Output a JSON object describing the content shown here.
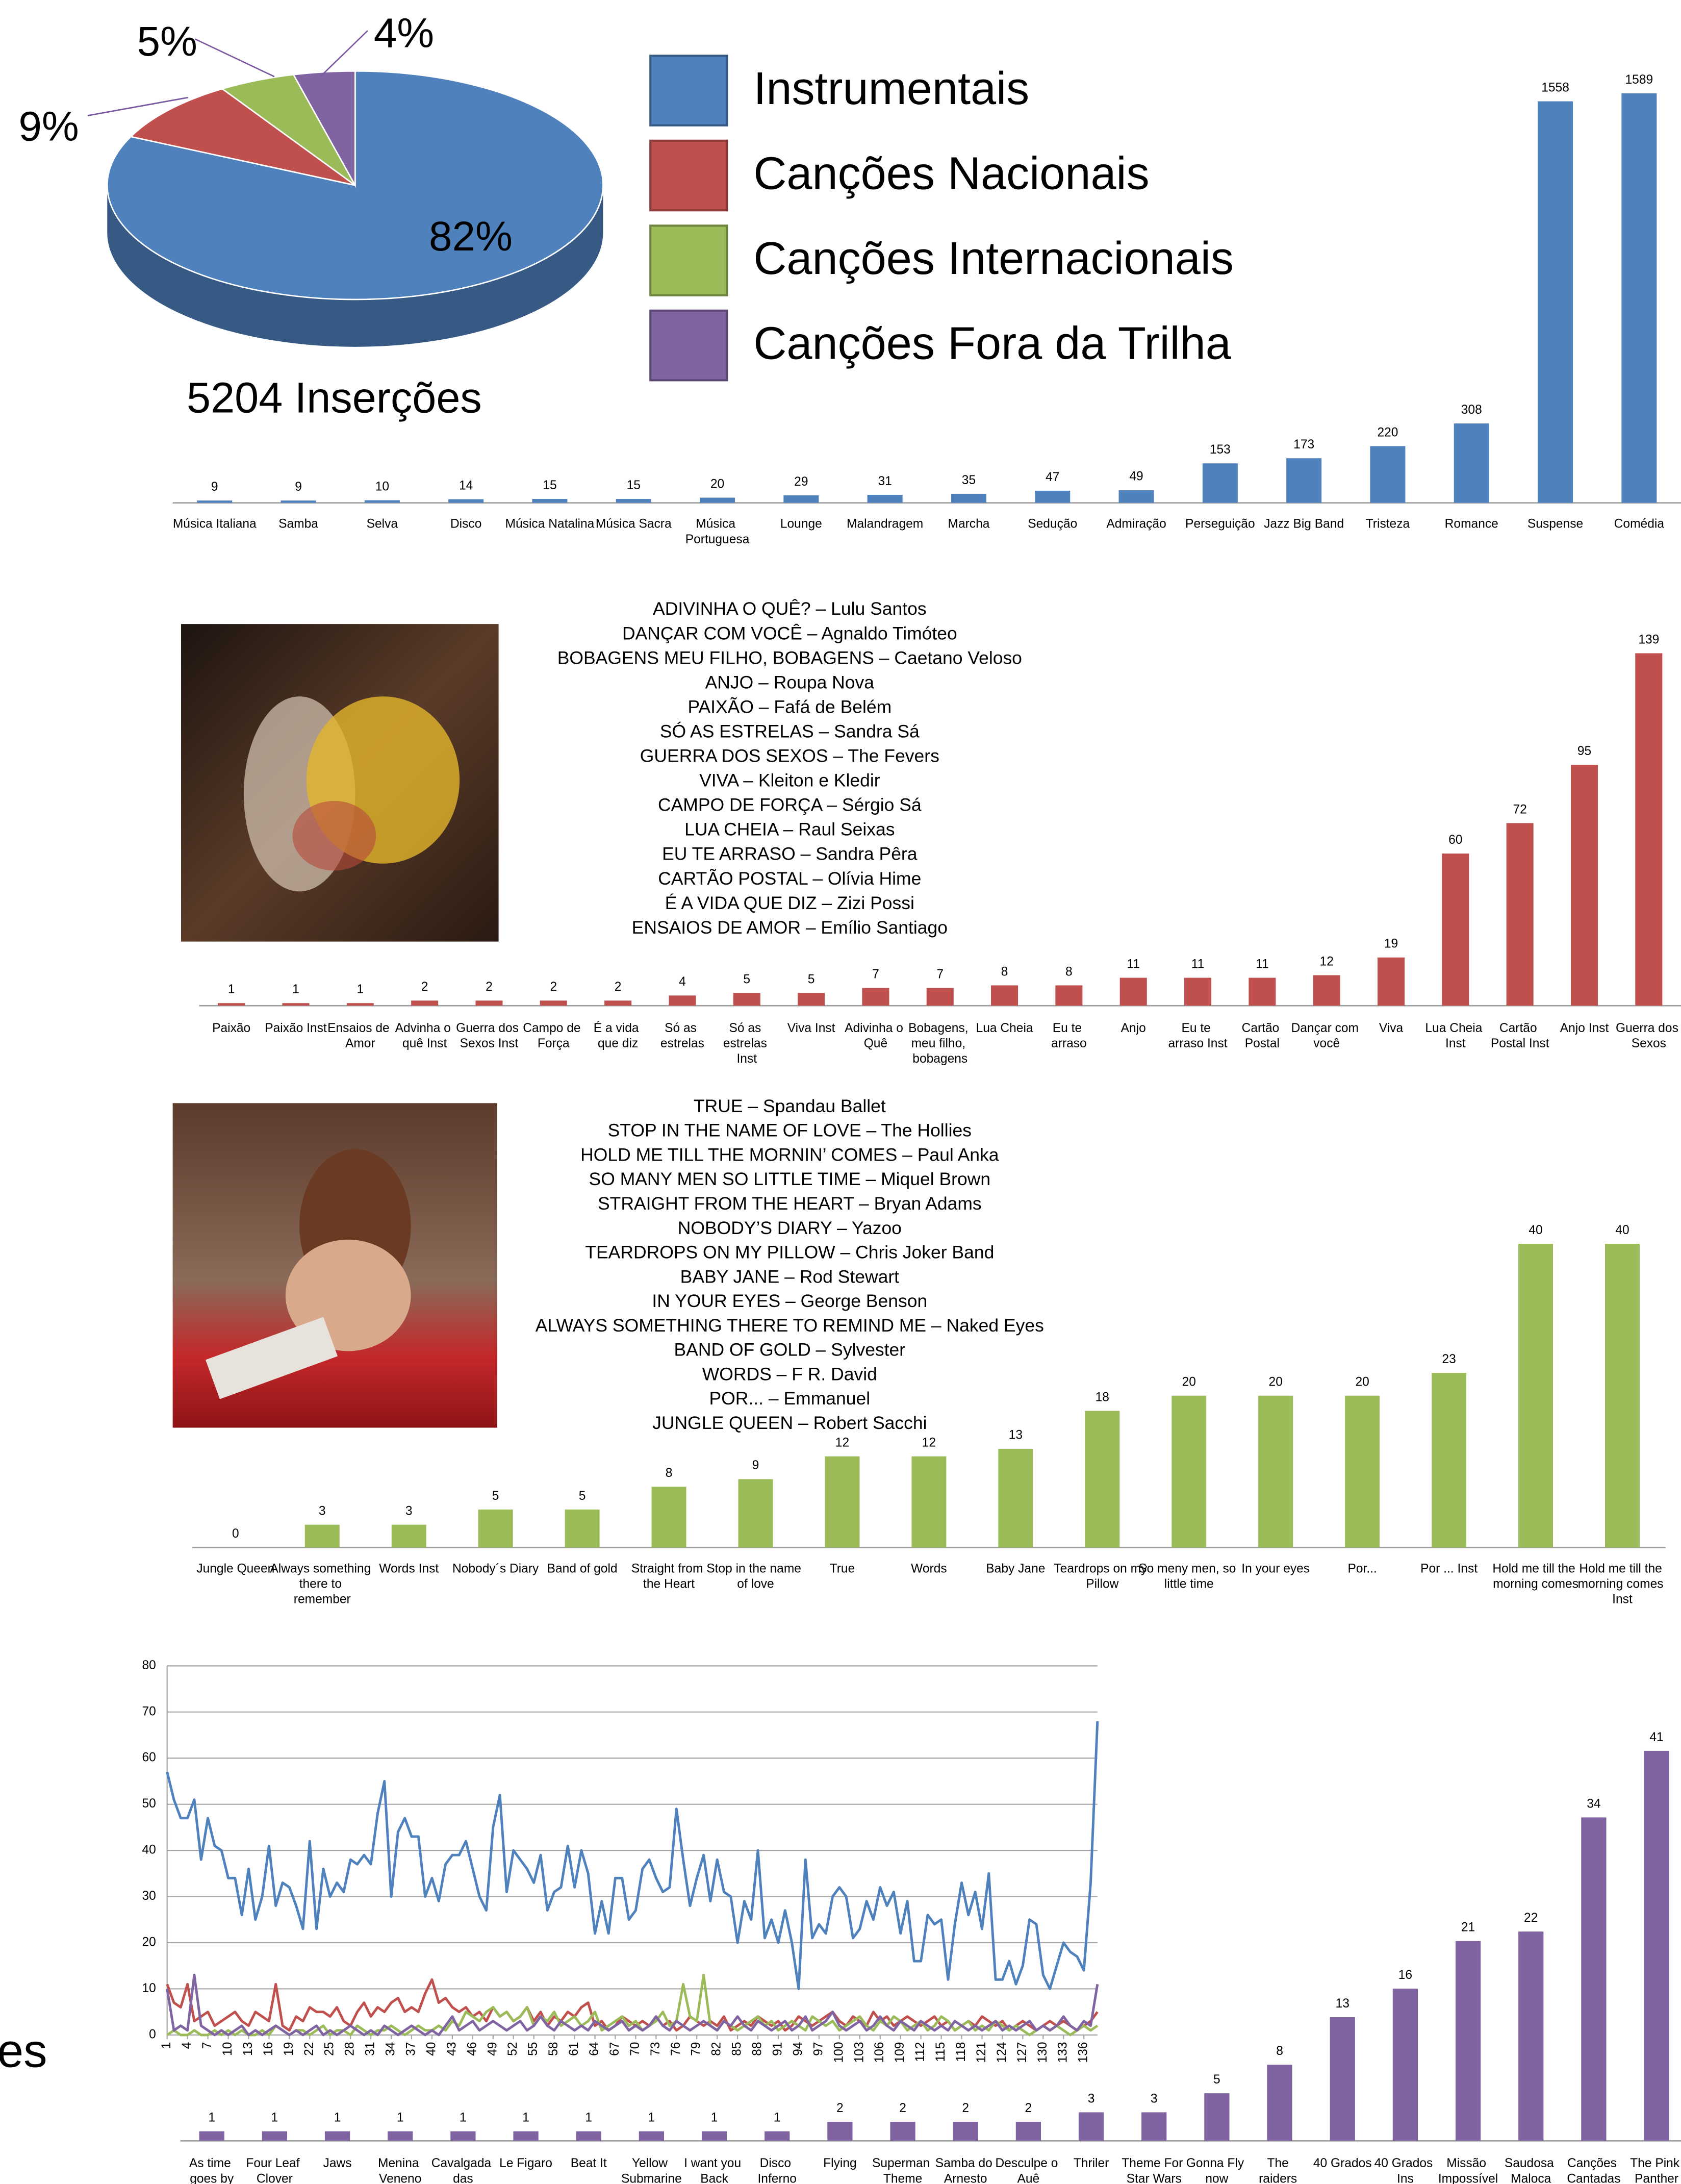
{
  "fragment": "es",
  "chart_data": [
    {
      "type": "pie",
      "categories": [
        "Instrumentais",
        "Canções Nacionais",
        "Canções Internacionais",
        "Canções Fora da Trilha"
      ],
      "values": [
        82,
        9,
        5,
        4
      ],
      "value_labels": [
        "82%",
        "9%",
        "5%",
        "4%"
      ],
      "colors": [
        "#4f81bd",
        "#c0504d",
        "#9bbb59",
        "#8064a2"
      ],
      "annotation": "5204 Inserções",
      "legend": "right"
    },
    {
      "type": "bar",
      "color": "#4f81bd",
      "categories": [
        "Música Italiana",
        "Samba",
        "Selva",
        "Disco",
        "Música Natalina",
        "Música Sacra",
        "Música Portuguesa",
        "Lounge",
        "Malandragem",
        "Marcha",
        "Sedução",
        "Admiração",
        "Perseguição",
        "Jazz Big Band",
        "Tristeza",
        "Romance",
        "Suspense",
        "Comédia"
      ],
      "values": [
        9,
        9,
        10,
        14,
        15,
        15,
        20,
        29,
        31,
        35,
        47,
        49,
        153,
        173,
        220,
        308,
        1558,
        1589
      ]
    },
    {
      "type": "bar",
      "color": "#c0504d",
      "categories": [
        "Paixão",
        "Paixão Inst",
        "Ensaios de Amor",
        "Advinha o quê Inst",
        "Guerra dos Sexos Inst",
        "Campo de Força",
        "É a vida que diz",
        "Só as estrelas",
        "Só as estrelas Inst",
        "Viva Inst",
        "Adivinha o Quê",
        "Bobagens, meu filho, bobagens",
        "Lua Cheia",
        "Eu te arraso",
        "Anjo",
        "Eu te arraso Inst",
        "Cartão Postal",
        "Dançar com você",
        "Viva",
        "Lua Cheia Inst",
        "Cartão Postal Inst",
        "Anjo Inst",
        "Guerra dos Sexos"
      ],
      "values": [
        1,
        1,
        1,
        2,
        2,
        2,
        2,
        4,
        5,
        5,
        7,
        7,
        8,
        8,
        11,
        11,
        11,
        12,
        19,
        60,
        72,
        95,
        139
      ],
      "songs": [
        "ADIVINHA O QUÊ? – Lulu Santos",
        "DANÇAR COM VOCÊ – Agnaldo Timóteo",
        "BOBAGENS MEU FILHO, BOBAGENS – Caetano Veloso",
        "ANJO – Roupa Nova",
        "PAIXÃO – Fafá de Belém",
        "SÓ AS ESTRELAS – Sandra Sá",
        "GUERRA DOS SEXOS – The Fevers",
        "VIVA – Kleiton e Kledir",
        "CAMPO DE FORÇA – Sérgio Sá",
        "LUA CHEIA – Raul Seixas",
        "EU TE ARRASO – Sandra Pêra",
        "CARTÃO POSTAL – Olívia Hime",
        "É A VIDA QUE DIZ – Zizi Possi",
        "ENSAIOS DE AMOR – Emílio Santiago"
      ]
    },
    {
      "type": "bar",
      "color": "#9bbb59",
      "categories": [
        "Jungle Queen",
        "Always something there to remember",
        "Words Inst",
        "Nobody´s Diary",
        "Band of gold",
        "Straight from the Heart",
        "Stop in the name of love",
        "True",
        "Words",
        "Baby Jane",
        "Teardrops on my Pillow",
        "So meny men, so little time",
        "In your eyes",
        "Por...",
        "Por ... Inst",
        "Hold me till the morning comes",
        "Hold me till the morning comes Inst"
      ],
      "values": [
        0,
        3,
        3,
        5,
        5,
        8,
        9,
        12,
        12,
        13,
        18,
        20,
        20,
        20,
        23,
        40,
        40
      ],
      "songs": [
        "TRUE – Spandau Ballet",
        "STOP IN THE NAME OF LOVE – The  Hollies",
        "HOLD ME TILL THE MORNIN’ COMES – Paul Anka",
        "SO MANY MEN SO LITTLE TIME – Miquel Brown",
        "STRAIGHT FROM THE HEART – Bryan Adams",
        "NOBODY’S DIARY – Yazoo",
        "TEARDROPS ON MY PILLOW – Chris Joker Band",
        "BABY JANE – Rod Stewart",
        "IN YOUR EYES – George Benson",
        "ALWAYS SOMETHING THERE TO REMIND ME – Naked Eyes",
        "BAND OF GOLD – Sylvester",
        "WORDS – F R. David",
        "POR... – Emmanuel",
        "JUNGLE QUEEN – Robert Sacchi"
      ]
    },
    {
      "type": "line",
      "grid": true,
      "ylim": [
        0,
        80
      ],
      "yticks": [
        0,
        10,
        20,
        30,
        40,
        50,
        60,
        70,
        80
      ],
      "xlim": [
        1,
        138
      ],
      "xticks": [
        1,
        4,
        7,
        10,
        13,
        16,
        19,
        22,
        25,
        28,
        31,
        34,
        37,
        40,
        43,
        46,
        49,
        52,
        55,
        58,
        61,
        64,
        67,
        70,
        73,
        76,
        79,
        82,
        85,
        88,
        91,
        94,
        97,
        100,
        103,
        106,
        109,
        112,
        115,
        118,
        121,
        124,
        127,
        130,
        133,
        136
      ],
      "x": [
        1,
        2,
        3,
        4,
        5,
        6,
        7,
        8,
        9,
        10,
        11,
        12,
        13,
        14,
        15,
        16,
        17,
        18,
        19,
        20,
        21,
        22,
        23,
        24,
        25,
        26,
        27,
        28,
        29,
        30,
        31,
        32,
        33,
        34,
        35,
        36,
        37,
        38,
        39,
        40,
        41,
        42,
        43,
        44,
        45,
        46,
        47,
        48,
        49,
        50,
        51,
        52,
        53,
        54,
        55,
        56,
        57,
        58,
        59,
        60,
        61,
        62,
        63,
        64,
        65,
        66,
        67,
        68,
        69,
        70,
        71,
        72,
        73,
        74,
        75,
        76,
        77,
        78,
        79,
        80,
        81,
        82,
        83,
        84,
        85,
        86,
        87,
        88,
        89,
        90,
        91,
        92,
        93,
        94,
        95,
        96,
        97,
        98,
        99,
        100,
        101,
        102,
        103,
        104,
        105,
        106,
        107,
        108,
        109,
        110,
        111,
        112,
        113,
        114,
        115,
        116,
        117,
        118,
        119,
        120,
        121,
        122,
        123,
        124,
        125,
        126,
        127,
        128,
        129,
        130,
        131,
        132,
        133,
        134,
        135,
        136,
        137,
        138
      ],
      "series": [
        {
          "color": "#4f81bd",
          "values": [
            57,
            51,
            47,
            47,
            51,
            38,
            47,
            41,
            40,
            34,
            34,
            26,
            36,
            25,
            30,
            41,
            28,
            33,
            32,
            28,
            23,
            42,
            23,
            36,
            30,
            33,
            31,
            38,
            37,
            39,
            37,
            48,
            55,
            30,
            44,
            47,
            43,
            43,
            30,
            34,
            29,
            37,
            39,
            39,
            42,
            36,
            30,
            27,
            45,
            52,
            31,
            40,
            38,
            36,
            33,
            39,
            27,
            31,
            32,
            41,
            32,
            40,
            35,
            22,
            29,
            22,
            34,
            34,
            25,
            27,
            36,
            38,
            34,
            31,
            32,
            49,
            38,
            28,
            34,
            39,
            29,
            38,
            31,
            30,
            20,
            29,
            25,
            40,
            21,
            25,
            20,
            27,
            20,
            10,
            38,
            21,
            24,
            22,
            30,
            32,
            30,
            21,
            23,
            29,
            25,
            32,
            28,
            31,
            22,
            29,
            16,
            16,
            26,
            24,
            25,
            12,
            24,
            33,
            26,
            31,
            23,
            35,
            12,
            12,
            16,
            11,
            15,
            25,
            24,
            13,
            10,
            15,
            20,
            18,
            17,
            14,
            33,
            68
          ]
        },
        {
          "color": "#c0504d",
          "values": [
            11,
            7,
            6,
            11,
            3,
            4,
            5,
            2,
            3,
            4,
            5,
            3,
            2,
            5,
            4,
            3,
            11,
            2,
            1,
            4,
            3,
            6,
            5,
            5,
            4,
            6,
            3,
            2,
            5,
            7,
            4,
            6,
            5,
            7,
            8,
            5,
            6,
            5,
            9,
            12,
            7,
            8,
            6,
            5,
            6,
            4,
            5,
            3,
            6,
            4,
            5,
            3,
            4,
            6,
            3,
            5,
            2,
            4,
            3,
            5,
            4,
            6,
            7,
            2,
            3,
            1,
            2,
            4,
            3,
            2,
            3,
            2,
            4,
            2,
            3,
            1,
            2,
            4,
            3,
            2,
            3,
            2,
            4,
            1,
            2,
            3,
            2,
            4,
            3,
            2,
            3,
            1,
            2,
            4,
            3,
            2,
            3,
            4,
            5,
            3,
            2,
            4,
            3,
            2,
            5,
            3,
            4,
            2,
            3,
            4,
            3,
            2,
            3,
            4,
            2,
            3,
            1,
            2,
            3,
            2,
            4,
            3,
            2,
            3,
            1,
            2,
            3,
            2,
            1,
            2,
            3,
            2,
            3,
            2,
            1,
            2,
            3,
            5
          ]
        },
        {
          "color": "#9bbb59",
          "values": [
            0,
            1,
            0,
            0,
            1,
            0,
            0,
            1,
            0,
            1,
            0,
            1,
            0,
            0,
            1,
            0,
            2,
            1,
            0,
            1,
            1,
            0,
            1,
            2,
            0,
            1,
            1,
            0,
            2,
            1,
            0,
            1,
            1,
            2,
            1,
            0,
            1,
            2,
            1,
            1,
            2,
            1,
            3,
            2,
            5,
            4,
            3,
            5,
            6,
            4,
            5,
            3,
            4,
            6,
            2,
            4,
            3,
            5,
            2,
            3,
            4,
            2,
            3,
            5,
            1,
            2,
            3,
            4,
            2,
            3,
            1,
            2,
            3,
            5,
            2,
            3,
            11,
            4,
            3,
            13,
            2,
            1,
            3,
            2,
            1,
            2,
            3,
            4,
            2,
            3,
            1,
            2,
            3,
            2,
            1,
            4,
            3,
            2,
            3,
            1,
            2,
            3,
            4,
            2,
            1,
            3,
            2,
            4,
            3,
            1,
            2,
            3,
            1,
            2,
            4,
            3,
            1,
            2,
            3,
            1,
            2,
            1,
            3,
            2,
            1,
            2,
            1,
            0,
            1,
            2,
            1,
            2,
            1,
            0,
            1,
            2,
            1,
            2
          ]
        },
        {
          "color": "#8064a2",
          "values": [
            10,
            1,
            2,
            1,
            13,
            2,
            1,
            0,
            1,
            0,
            1,
            2,
            0,
            1,
            0,
            1,
            2,
            1,
            0,
            1,
            0,
            1,
            2,
            0,
            1,
            0,
            1,
            2,
            1,
            0,
            1,
            0,
            2,
            1,
            0,
            1,
            2,
            1,
            0,
            1,
            0,
            2,
            4,
            1,
            2,
            3,
            1,
            2,
            3,
            2,
            1,
            2,
            3,
            1,
            2,
            4,
            2,
            1,
            3,
            2,
            1,
            2,
            1,
            3,
            2,
            1,
            2,
            3,
            1,
            2,
            1,
            2,
            4,
            2,
            1,
            3,
            2,
            1,
            2,
            3,
            2,
            1,
            3,
            2,
            4,
            2,
            1,
            3,
            2,
            1,
            2,
            3,
            1,
            2,
            4,
            1,
            2,
            3,
            5,
            2,
            1,
            2,
            3,
            1,
            2,
            4,
            2,
            1,
            3,
            2,
            1,
            3,
            2,
            1,
            2,
            1,
            3,
            2,
            1,
            2,
            1,
            2,
            3,
            1,
            2,
            1,
            2,
            3,
            1,
            2,
            1,
            2,
            4,
            2,
            1,
            3,
            2,
            11
          ]
        }
      ]
    },
    {
      "type": "bar",
      "color": "#8064a2",
      "categories": [
        "As time goes by",
        "Four Leaf Clover",
        "Jaws",
        "Menina Veneno",
        "Cavalgada das",
        "Le Figaro",
        "Beat It",
        "Yellow Submarine",
        "I want you Back",
        "Disco Inferno",
        "Flying",
        "Superman Theme",
        "Samba do Arnesto",
        "Desculpe o Auê",
        "Thriler",
        "Theme For Star Wars",
        "Gonna Fly now",
        "The raiders march",
        "40 Grados",
        "40 Grados Ins",
        "Missão Impossível",
        "Saudosa Maloca",
        "Canções Cantadas",
        "The Pink Panther"
      ],
      "values": [
        1,
        1,
        1,
        1,
        1,
        1,
        1,
        1,
        1,
        1,
        2,
        2,
        2,
        2,
        3,
        3,
        5,
        8,
        13,
        16,
        21,
        22,
        34,
        41
      ]
    }
  ]
}
